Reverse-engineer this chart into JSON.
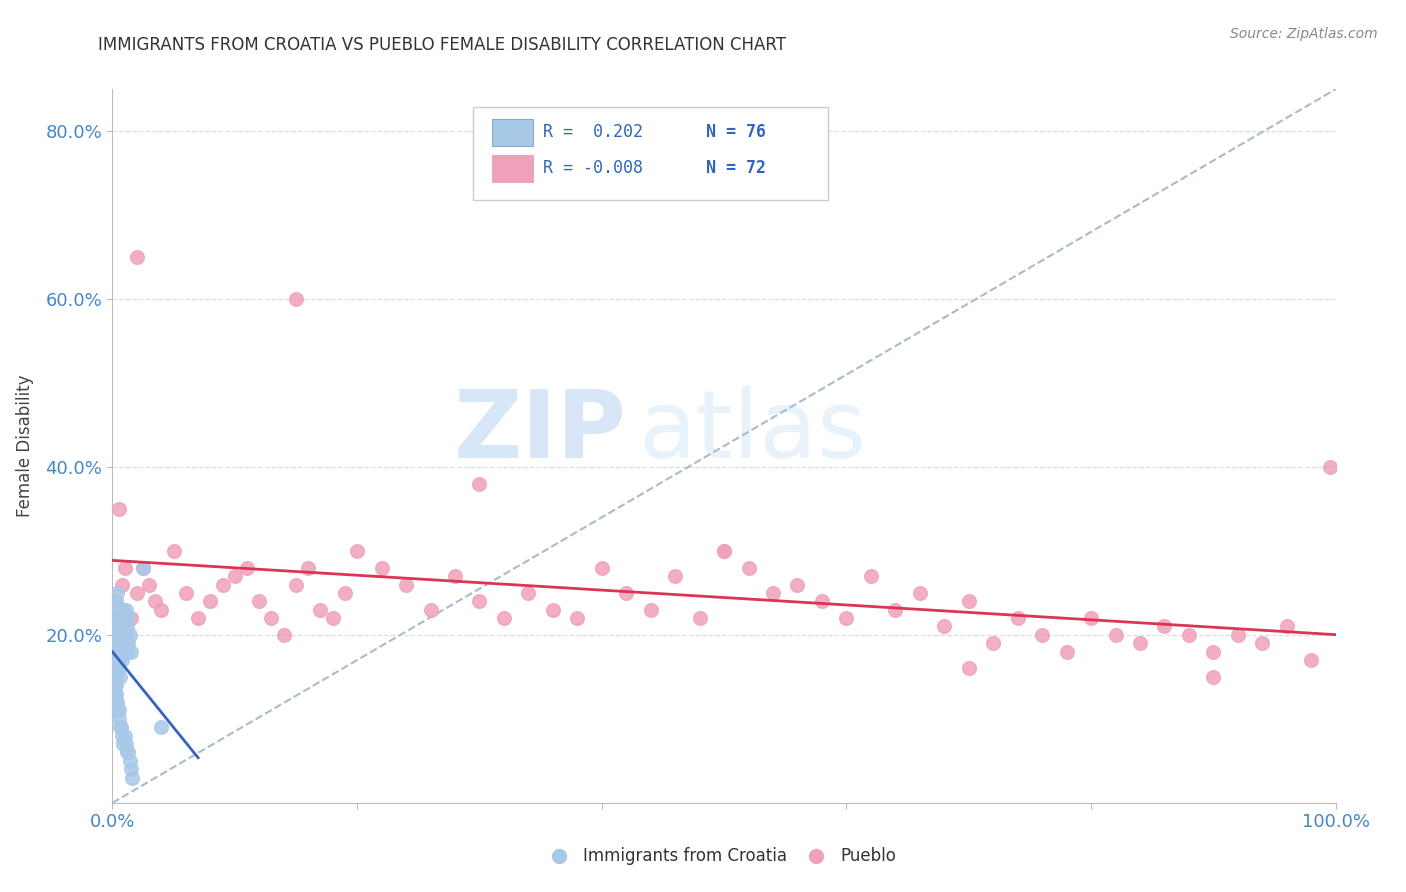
{
  "title": "IMMIGRANTS FROM CROATIA VS PUEBLO FEMALE DISABILITY CORRELATION CHART",
  "source": "Source: ZipAtlas.com",
  "ylabel": "Female Disability",
  "xlim": [
    0.0,
    1.0
  ],
  "ylim": [
    0.0,
    0.85
  ],
  "xtick_labels": [
    "0.0%",
    "",
    "",
    "",
    "",
    "100.0%"
  ],
  "ytick_labels": [
    "20.0%",
    "40.0%",
    "60.0%",
    "80.0%"
  ],
  "legend_r_blue": "R =  0.202",
  "legend_n_blue": "N = 76",
  "legend_r_pink": "R = -0.008",
  "legend_n_pink": "N = 72",
  "blue_color": "#a8c8e8",
  "pink_color": "#f0a0b8",
  "blue_line_color": "#3366bb",
  "pink_line_color": "#dd3355",
  "diag_color": "#aabbcc",
  "grid_color": "#dddddd",
  "blue_scatter_x": [
    0.001,
    0.001,
    0.002,
    0.002,
    0.002,
    0.002,
    0.002,
    0.003,
    0.003,
    0.003,
    0.003,
    0.003,
    0.003,
    0.003,
    0.004,
    0.004,
    0.004,
    0.004,
    0.004,
    0.004,
    0.004,
    0.005,
    0.005,
    0.005,
    0.005,
    0.005,
    0.005,
    0.006,
    0.006,
    0.006,
    0.006,
    0.007,
    0.007,
    0.007,
    0.008,
    0.008,
    0.008,
    0.009,
    0.009,
    0.009,
    0.01,
    0.01,
    0.011,
    0.011,
    0.012,
    0.012,
    0.013,
    0.013,
    0.014,
    0.015,
    0.001,
    0.001,
    0.001,
    0.002,
    0.002,
    0.002,
    0.003,
    0.003,
    0.003,
    0.004,
    0.004,
    0.005,
    0.005,
    0.006,
    0.007,
    0.008,
    0.009,
    0.01,
    0.011,
    0.012,
    0.013,
    0.014,
    0.015,
    0.016,
    0.025,
    0.04
  ],
  "blue_scatter_y": [
    0.22,
    0.24,
    0.19,
    0.21,
    0.2,
    0.18,
    0.17,
    0.16,
    0.15,
    0.2,
    0.18,
    0.17,
    0.22,
    0.24,
    0.21,
    0.19,
    0.23,
    0.2,
    0.18,
    0.22,
    0.25,
    0.2,
    0.21,
    0.19,
    0.23,
    0.17,
    0.16,
    0.18,
    0.2,
    0.22,
    0.15,
    0.21,
    0.19,
    0.23,
    0.2,
    0.22,
    0.17,
    0.18,
    0.21,
    0.23,
    0.19,
    0.22,
    0.2,
    0.23,
    0.18,
    0.21,
    0.19,
    0.22,
    0.2,
    0.18,
    0.14,
    0.13,
    0.12,
    0.14,
    0.13,
    0.15,
    0.12,
    0.13,
    0.14,
    0.11,
    0.12,
    0.1,
    0.11,
    0.09,
    0.09,
    0.08,
    0.07,
    0.08,
    0.07,
    0.06,
    0.06,
    0.05,
    0.04,
    0.03,
    0.28,
    0.09
  ],
  "pink_scatter_x": [
    0.003,
    0.005,
    0.008,
    0.01,
    0.015,
    0.02,
    0.025,
    0.03,
    0.035,
    0.04,
    0.05,
    0.06,
    0.07,
    0.08,
    0.09,
    0.1,
    0.11,
    0.12,
    0.13,
    0.14,
    0.15,
    0.16,
    0.17,
    0.18,
    0.19,
    0.2,
    0.22,
    0.24,
    0.26,
    0.28,
    0.3,
    0.32,
    0.34,
    0.36,
    0.38,
    0.4,
    0.42,
    0.44,
    0.46,
    0.48,
    0.5,
    0.52,
    0.54,
    0.56,
    0.58,
    0.6,
    0.62,
    0.64,
    0.66,
    0.68,
    0.7,
    0.72,
    0.74,
    0.76,
    0.78,
    0.8,
    0.82,
    0.84,
    0.86,
    0.88,
    0.9,
    0.92,
    0.94,
    0.96,
    0.98,
    0.995,
    0.02,
    0.15,
    0.3,
    0.5,
    0.7,
    0.9
  ],
  "pink_scatter_y": [
    0.22,
    0.35,
    0.26,
    0.28,
    0.22,
    0.25,
    0.28,
    0.26,
    0.24,
    0.23,
    0.3,
    0.25,
    0.22,
    0.24,
    0.26,
    0.27,
    0.28,
    0.24,
    0.22,
    0.2,
    0.26,
    0.28,
    0.23,
    0.22,
    0.25,
    0.3,
    0.28,
    0.26,
    0.23,
    0.27,
    0.24,
    0.22,
    0.25,
    0.23,
    0.22,
    0.28,
    0.25,
    0.23,
    0.27,
    0.22,
    0.3,
    0.28,
    0.25,
    0.26,
    0.24,
    0.22,
    0.27,
    0.23,
    0.25,
    0.21,
    0.24,
    0.19,
    0.22,
    0.2,
    0.18,
    0.22,
    0.2,
    0.19,
    0.21,
    0.2,
    0.18,
    0.2,
    0.19,
    0.21,
    0.17,
    0.4,
    0.65,
    0.6,
    0.38,
    0.3,
    0.16,
    0.15
  ]
}
